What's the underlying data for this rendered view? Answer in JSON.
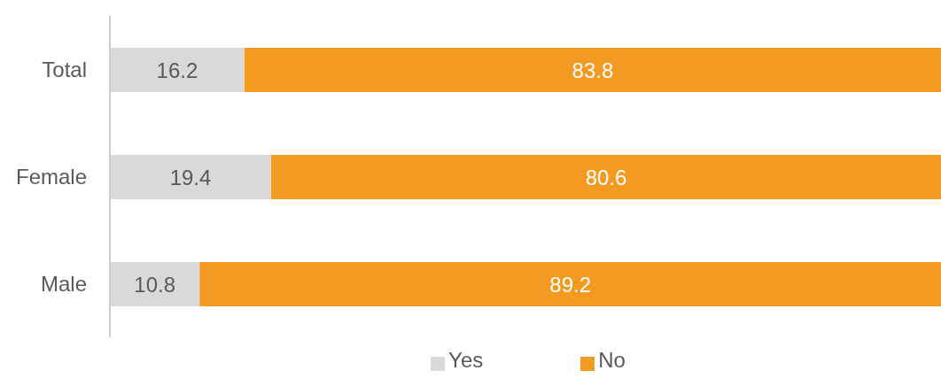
{
  "chart_data": {
    "type": "bar",
    "orientation": "horizontal",
    "stacked": true,
    "categories": [
      "Total",
      "Female",
      "Male"
    ],
    "series": [
      {
        "name": "Yes",
        "color": "#d9d9d9",
        "values": [
          16.2,
          19.4,
          10.8
        ]
      },
      {
        "name": "No",
        "color": "#f29a22",
        "values": [
          83.8,
          80.6,
          89.2
        ]
      }
    ],
    "xlim": [
      0,
      100
    ],
    "data_labels": true,
    "legend": "bottom",
    "grid": false,
    "tick_labels": "y"
  }
}
